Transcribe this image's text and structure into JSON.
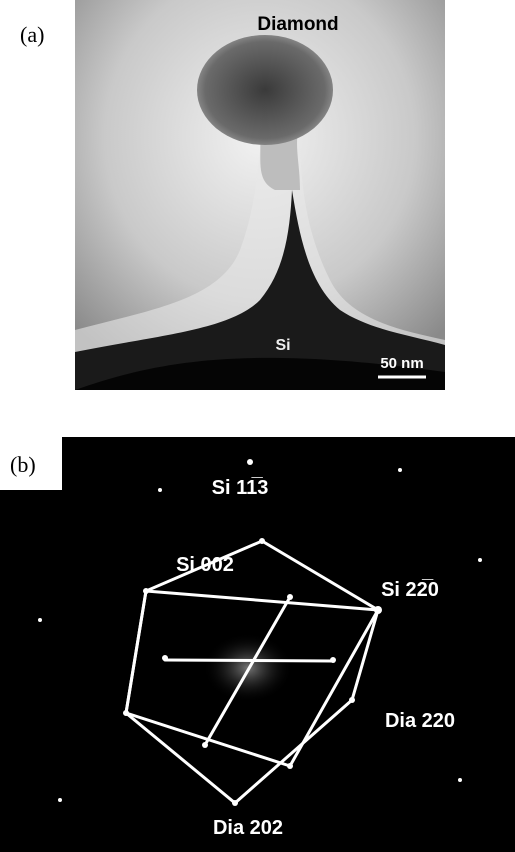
{
  "panel_a": {
    "label": "(a)",
    "diamond_label": "Diamond",
    "si_label": "Si",
    "scale_bar": "50 nm"
  },
  "panel_b": {
    "label": "(b)",
    "spots": [
      "Si 11̅3",
      "Si 002",
      "Si 22̅0",
      "Dia 220",
      "Dia 202"
    ]
  }
}
